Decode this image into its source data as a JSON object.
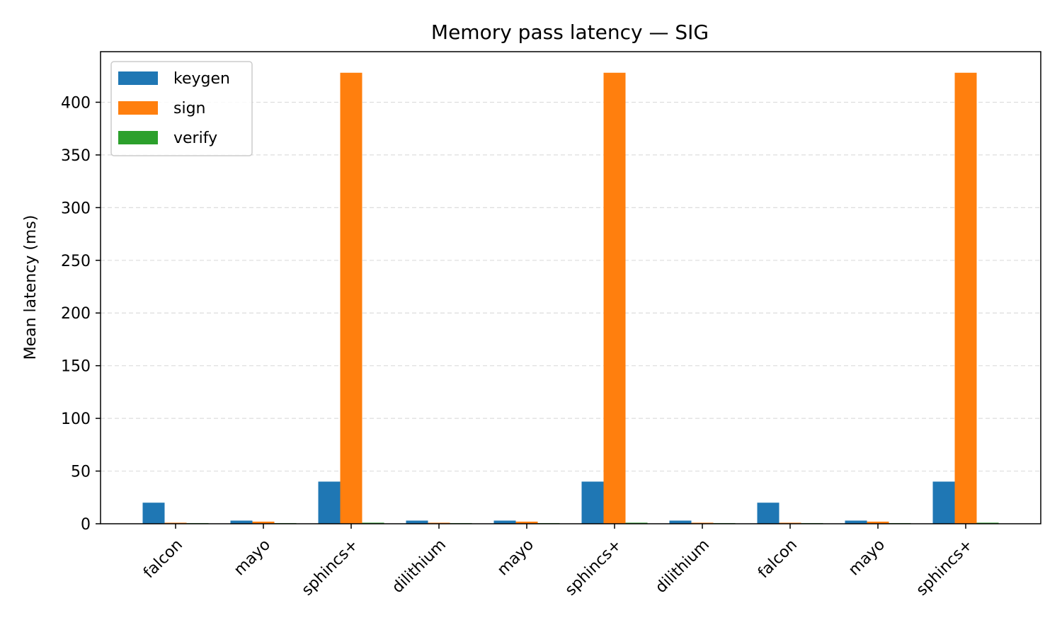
{
  "chart_data": {
    "type": "bar",
    "title": "Memory pass latency — SIG",
    "xlabel": "",
    "ylabel": "Mean latency (ms)",
    "categories": [
      "falcon",
      "mayo",
      "sphincs+",
      "dilithium",
      "mayo",
      "sphincs+",
      "dilithium",
      "falcon",
      "mayo",
      "sphincs+"
    ],
    "series": [
      {
        "name": "keygen",
        "color": "#1f77b4",
        "values": [
          20,
          3,
          40,
          3,
          3,
          40,
          3,
          20,
          3,
          40
        ]
      },
      {
        "name": "sign",
        "color": "#ff7f0e",
        "values": [
          1,
          2,
          428,
          1,
          2,
          428,
          1,
          1,
          2,
          428
        ]
      },
      {
        "name": "verify",
        "color": "#2ca02c",
        "values": [
          0.6,
          0.6,
          1,
          0.6,
          0.6,
          1,
          0.6,
          0.6,
          0.6,
          1
        ]
      }
    ],
    "ylim": [
      0,
      448
    ],
    "yticks": [
      0,
      50,
      100,
      150,
      200,
      250,
      300,
      350,
      400
    ],
    "grid": "y-dashed",
    "legend": "top-left"
  }
}
